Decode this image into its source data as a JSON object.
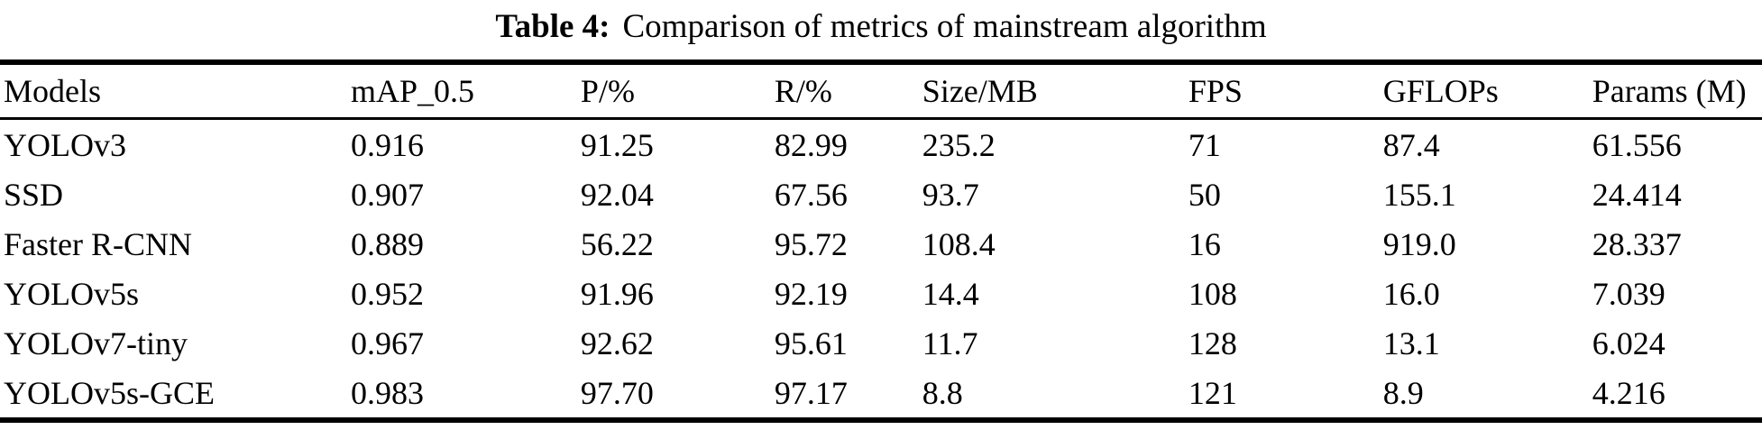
{
  "table": {
    "caption_label": "Table 4:",
    "caption_text": "Comparison of metrics of mainstream algorithm",
    "columns": [
      "Models",
      "mAP_0.5",
      "P/%",
      "R/%",
      "Size/MB",
      "FPS",
      "GFLOPs",
      "Params (M)"
    ],
    "rows": [
      [
        "YOLOv3",
        "0.916",
        "91.25",
        "82.99",
        "235.2",
        "71",
        "87.4",
        "61.556"
      ],
      [
        "SSD",
        "0.907",
        "92.04",
        "67.56",
        "93.7",
        "50",
        "155.1",
        "24.414"
      ],
      [
        "Faster R-CNN",
        "0.889",
        "56.22",
        "95.72",
        "108.4",
        "16",
        "919.0",
        "28.337"
      ],
      [
        "YOLOv5s",
        "0.952",
        "91.96",
        "92.19",
        "14.4",
        "108",
        "16.0",
        "7.039"
      ],
      [
        "YOLOv7-tiny",
        "0.967",
        "92.62",
        "95.61",
        "11.7",
        "128",
        "13.1",
        "6.024"
      ],
      [
        "YOLOv5s-GCE",
        "0.983",
        "97.70",
        "97.17",
        "8.8",
        "121",
        "8.9",
        "4.216"
      ]
    ],
    "text_color": "#000000",
    "background_color": "#ffffff"
  },
  "chart_data": {
    "type": "table",
    "title": "Table 4: Comparison of metrics of mainstream algorithm",
    "categories": [
      "YOLOv3",
      "SSD",
      "Faster R-CNN",
      "YOLOv5s",
      "YOLOv7-tiny",
      "YOLOv5s-GCE"
    ],
    "series": [
      {
        "name": "mAP_0.5",
        "values": [
          0.916,
          0.907,
          0.889,
          0.952,
          0.967,
          0.983
        ]
      },
      {
        "name": "P/%",
        "values": [
          91.25,
          92.04,
          56.22,
          91.96,
          92.62,
          97.7
        ]
      },
      {
        "name": "R/%",
        "values": [
          82.99,
          67.56,
          95.72,
          92.19,
          95.61,
          97.17
        ]
      },
      {
        "name": "Size/MB",
        "values": [
          235.2,
          93.7,
          108.4,
          14.4,
          11.7,
          8.8
        ]
      },
      {
        "name": "FPS",
        "values": [
          71,
          50,
          16,
          108,
          128,
          121
        ]
      },
      {
        "name": "GFLOPs",
        "values": [
          87.4,
          155.1,
          919.0,
          16.0,
          13.1,
          8.9
        ]
      },
      {
        "name": "Params (M)",
        "values": [
          61.556,
          24.414,
          28.337,
          7.039,
          6.024,
          4.216
        ]
      }
    ]
  }
}
